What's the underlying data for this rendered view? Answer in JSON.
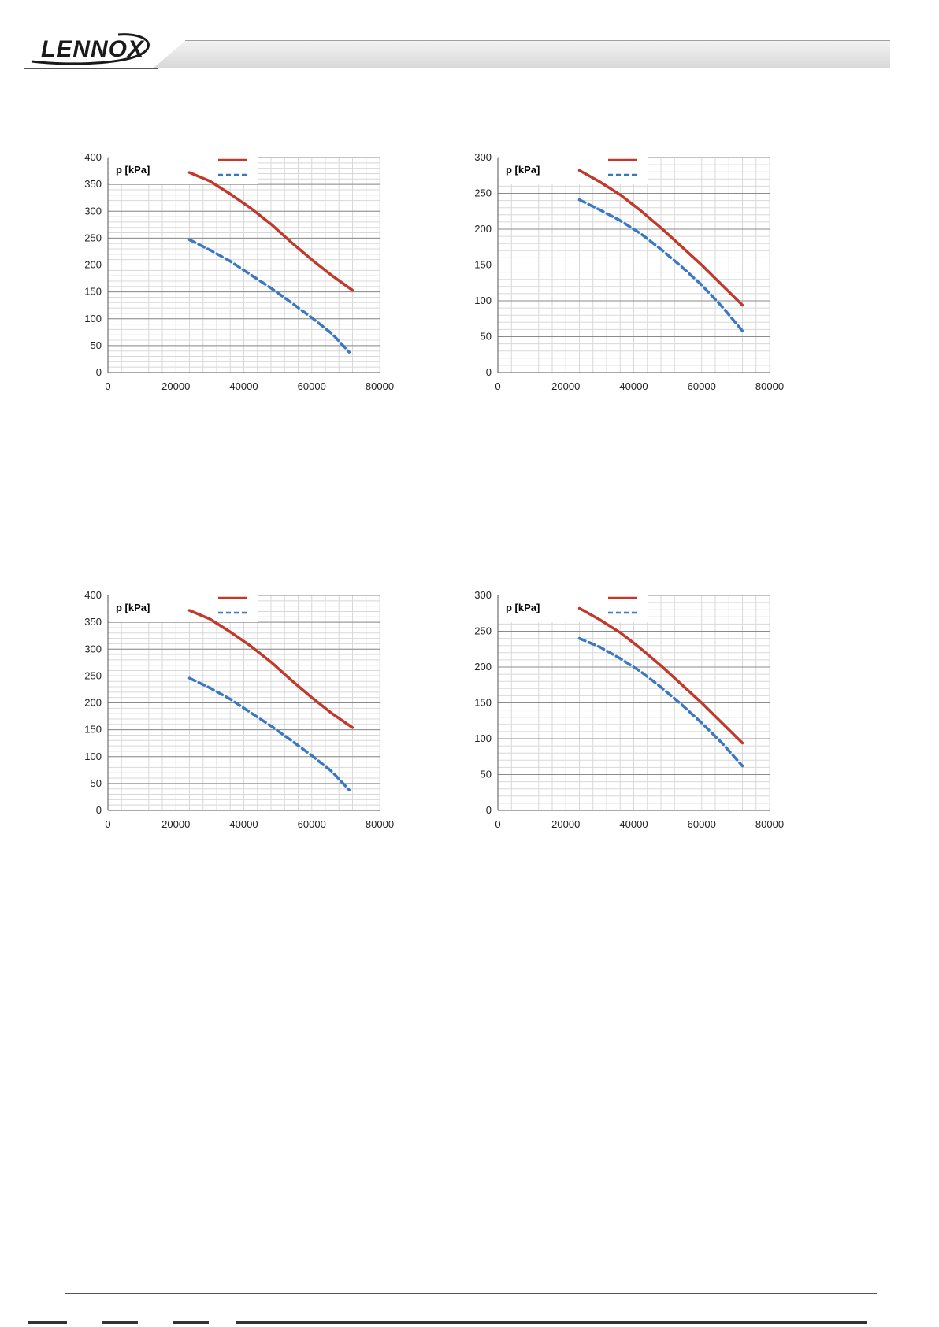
{
  "brand": {
    "logo_text": "LENNOX"
  },
  "charts": [
    {
      "type": "line",
      "ylabel": "p [kPa]",
      "xlim": [
        0,
        80000
      ],
      "ylim": [
        0,
        400
      ],
      "xticks": [
        0,
        20000,
        40000,
        60000,
        80000
      ],
      "yticks": [
        0,
        50,
        100,
        150,
        200,
        250,
        300,
        350,
        400
      ],
      "series": [
        {
          "style": "solid",
          "color": "#c0392b",
          "x": [
            24000,
            30000,
            36000,
            42000,
            48000,
            54000,
            60000,
            66000,
            72000
          ],
          "y": [
            372,
            356,
            332,
            306,
            276,
            242,
            210,
            180,
            153
          ]
        },
        {
          "style": "dashed",
          "color": "#3a78c3",
          "x": [
            24000,
            30000,
            36000,
            42000,
            48000,
            54000,
            60000,
            66000,
            71000
          ],
          "y": [
            247,
            228,
            207,
            182,
            157,
            130,
            102,
            72,
            38
          ]
        }
      ]
    },
    {
      "type": "line",
      "ylabel": "p [kPa]",
      "xlim": [
        0,
        80000
      ],
      "ylim": [
        0,
        300
      ],
      "xticks": [
        0,
        20000,
        40000,
        60000,
        80000
      ],
      "yticks": [
        0,
        50,
        100,
        150,
        200,
        250,
        300
      ],
      "series": [
        {
          "style": "solid",
          "color": "#c0392b",
          "x": [
            24000,
            30000,
            36000,
            42000,
            48000,
            54000,
            60000,
            66000,
            72000
          ],
          "y": [
            282,
            266,
            248,
            226,
            202,
            176,
            150,
            122,
            94
          ]
        },
        {
          "style": "dashed",
          "color": "#3a78c3",
          "x": [
            24000,
            30000,
            36000,
            42000,
            48000,
            54000,
            60000,
            66000,
            72000
          ],
          "y": [
            241,
            227,
            212,
            194,
            172,
            148,
            122,
            92,
            58
          ]
        }
      ]
    },
    {
      "type": "line",
      "ylabel": "p [kPa]",
      "xlim": [
        0,
        80000
      ],
      "ylim": [
        0,
        400
      ],
      "xticks": [
        0,
        20000,
        40000,
        60000,
        80000
      ],
      "yticks": [
        0,
        50,
        100,
        150,
        200,
        250,
        300,
        350,
        400
      ],
      "series": [
        {
          "style": "solid",
          "color": "#c0392b",
          "x": [
            24000,
            30000,
            36000,
            42000,
            48000,
            54000,
            60000,
            66000,
            72000
          ],
          "y": [
            372,
            356,
            332,
            306,
            276,
            242,
            210,
            180,
            154
          ]
        },
        {
          "style": "dashed",
          "color": "#3a78c3",
          "x": [
            24000,
            30000,
            36000,
            42000,
            48000,
            54000,
            60000,
            66000,
            71000
          ],
          "y": [
            246,
            228,
            207,
            182,
            157,
            130,
            102,
            72,
            38
          ]
        }
      ]
    },
    {
      "type": "line",
      "ylabel": "p [kPa]",
      "xlim": [
        0,
        80000
      ],
      "ylim": [
        0,
        300
      ],
      "xticks": [
        0,
        20000,
        40000,
        60000,
        80000
      ],
      "yticks": [
        0,
        50,
        100,
        150,
        200,
        250,
        300
      ],
      "series": [
        {
          "style": "solid",
          "color": "#c0392b",
          "x": [
            24000,
            30000,
            36000,
            42000,
            48000,
            54000,
            60000,
            66000,
            72000
          ],
          "y": [
            282,
            266,
            248,
            226,
            202,
            176,
            150,
            122,
            94
          ]
        },
        {
          "style": "dashed",
          "color": "#3a78c3",
          "x": [
            24000,
            30000,
            36000,
            42000,
            48000,
            54000,
            60000,
            66000,
            72000
          ],
          "y": [
            240,
            228,
            212,
            194,
            172,
            148,
            122,
            94,
            62
          ]
        }
      ]
    }
  ]
}
